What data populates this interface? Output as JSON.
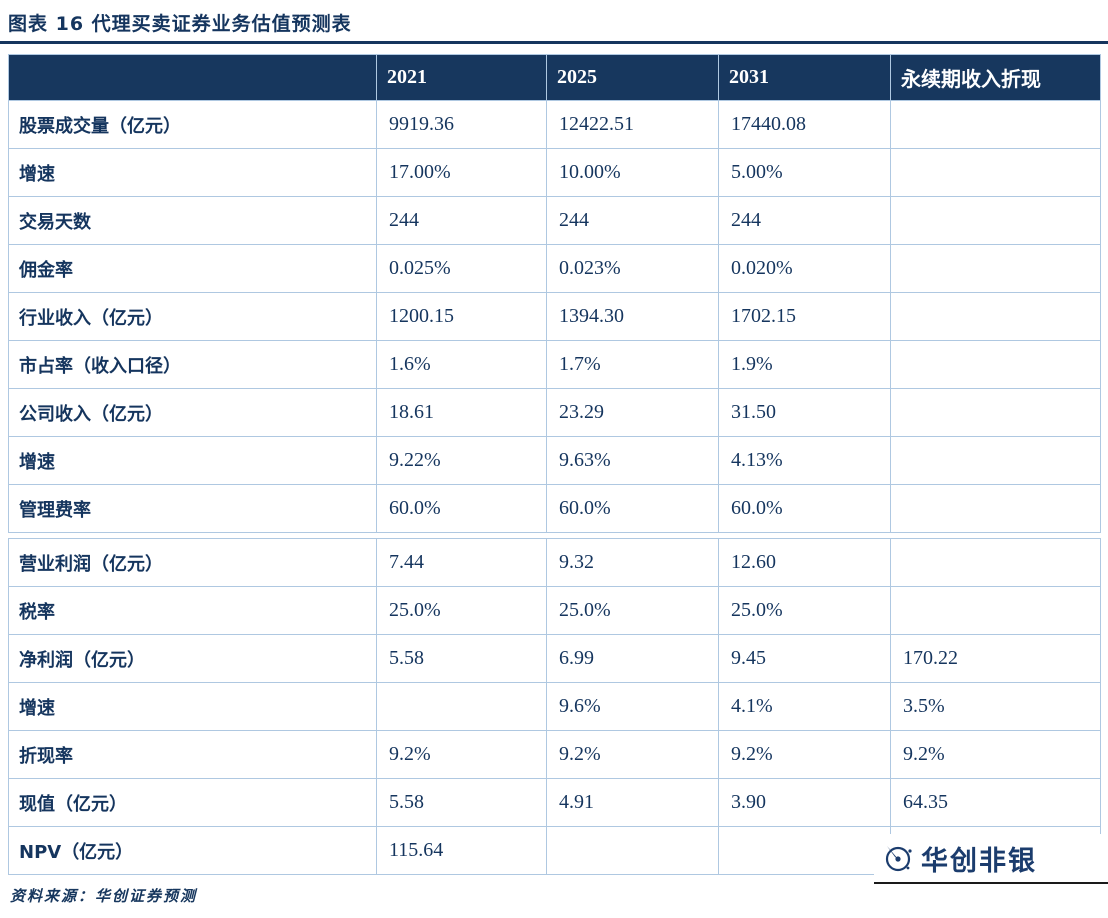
{
  "page": {
    "figure_title": "图表 16  代理买卖证券业务估值预测表",
    "source_note": "资料来源：华创证券预测",
    "logo_text": "华创非银"
  },
  "colors": {
    "header_bg": "#17375E",
    "body_text": "#15355E",
    "table_border": "#AFC8E1",
    "logo_navy": "#1B3C6D"
  },
  "chart_data": {
    "type": "table",
    "title": "代理买卖证券业务估值预测表",
    "columns": [
      "",
      "2021",
      "2025",
      "2031",
      "永续期收入折现"
    ],
    "rows": [
      {
        "label": "股票成交量（亿元）",
        "values": [
          "9919.36",
          "12422.51",
          "17440.08",
          ""
        ]
      },
      {
        "label": "增速",
        "values": [
          "17.00%",
          "10.00%",
          "5.00%",
          ""
        ]
      },
      {
        "label": "交易天数",
        "values": [
          "244",
          "244",
          "244",
          ""
        ]
      },
      {
        "label": "佣金率",
        "values": [
          "0.025%",
          "0.023%",
          "0.020%",
          ""
        ]
      },
      {
        "label": "行业收入（亿元）",
        "values": [
          "1200.15",
          "1394.30",
          "1702.15",
          ""
        ]
      },
      {
        "label": "市占率（收入口径）",
        "values": [
          "1.6%",
          "1.7%",
          "1.9%",
          ""
        ]
      },
      {
        "label": "公司收入（亿元）",
        "values": [
          "18.61",
          "23.29",
          "31.50",
          ""
        ]
      },
      {
        "label": "增速",
        "values": [
          "9.22%",
          "9.63%",
          "4.13%",
          ""
        ]
      },
      {
        "label": "管理费率",
        "values": [
          "60.0%",
          "60.0%",
          "60.0%",
          ""
        ],
        "gap_after": true
      },
      {
        "label": "营业利润（亿元）",
        "values": [
          "7.44",
          "9.32",
          "12.60",
          ""
        ]
      },
      {
        "label": "税率",
        "values": [
          "25.0%",
          "25.0%",
          "25.0%",
          ""
        ]
      },
      {
        "label": "净利润（亿元）",
        "values": [
          "5.58",
          "6.99",
          "9.45",
          "170.22"
        ]
      },
      {
        "label": "增速",
        "values": [
          "",
          "9.6%",
          "4.1%",
          "3.5%"
        ]
      },
      {
        "label": "折现率",
        "values": [
          "9.2%",
          "9.2%",
          "9.2%",
          "9.2%"
        ]
      },
      {
        "label": "现值（亿元）",
        "values": [
          "5.58",
          "4.91",
          "3.90",
          "64.35"
        ]
      },
      {
        "label": "NPV（亿元）",
        "values": [
          "115.64",
          "",
          "",
          ""
        ]
      }
    ]
  }
}
